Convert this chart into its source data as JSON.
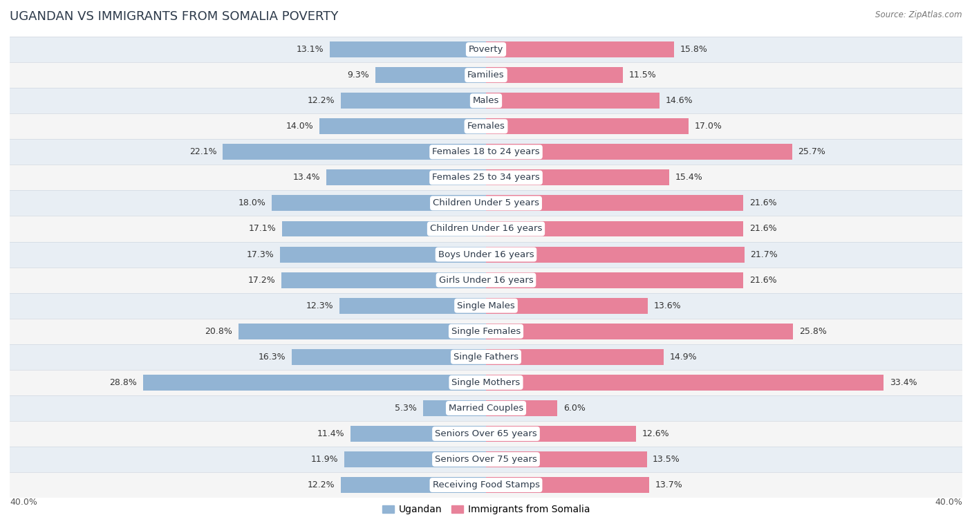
{
  "title": "UGANDAN VS IMMIGRANTS FROM SOMALIA POVERTY",
  "source": "Source: ZipAtlas.com",
  "categories": [
    "Poverty",
    "Families",
    "Males",
    "Females",
    "Females 18 to 24 years",
    "Females 25 to 34 years",
    "Children Under 5 years",
    "Children Under 16 years",
    "Boys Under 16 years",
    "Girls Under 16 years",
    "Single Males",
    "Single Females",
    "Single Fathers",
    "Single Mothers",
    "Married Couples",
    "Seniors Over 65 years",
    "Seniors Over 75 years",
    "Receiving Food Stamps"
  ],
  "ugandan": [
    13.1,
    9.3,
    12.2,
    14.0,
    22.1,
    13.4,
    18.0,
    17.1,
    17.3,
    17.2,
    12.3,
    20.8,
    16.3,
    28.8,
    5.3,
    11.4,
    11.9,
    12.2
  ],
  "somalia": [
    15.8,
    11.5,
    14.6,
    17.0,
    25.7,
    15.4,
    21.6,
    21.6,
    21.7,
    21.6,
    13.6,
    25.8,
    14.9,
    33.4,
    6.0,
    12.6,
    13.5,
    13.7
  ],
  "ugandan_color": "#92b4d4",
  "somalia_color": "#e8829a",
  "bg_color": "#ffffff",
  "row_color_odd": "#e8eef4",
  "row_color_even": "#f5f5f5",
  "row_separator": "#d0d8e0",
  "xlim": 40.0,
  "bar_height": 0.62,
  "title_fontsize": 13,
  "label_fontsize": 9.5,
  "tick_fontsize": 9,
  "legend_fontsize": 10,
  "value_fontsize": 9
}
